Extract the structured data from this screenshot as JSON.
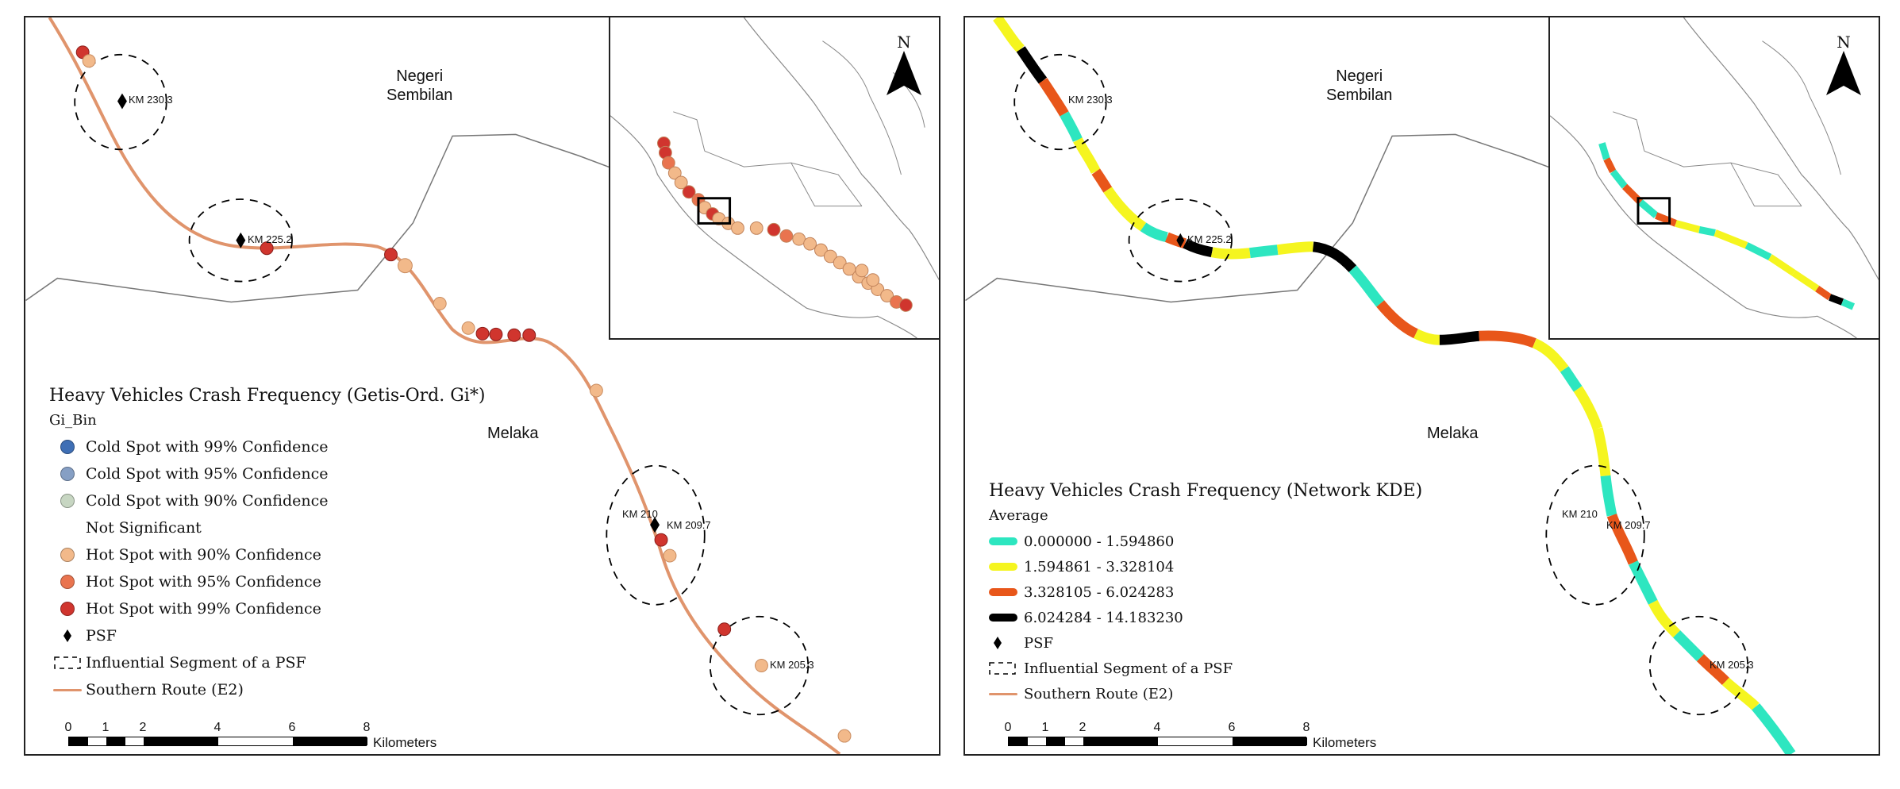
{
  "left_map": {
    "places": {
      "negeri": "Negeri\nSembilan",
      "melaka": "Melaka"
    },
    "km_labels": {
      "km230": "KM 230.3",
      "km225": "KM 225.2",
      "km210": "KM 210",
      "km209": "KM 209.7",
      "km205": "KM 205.3"
    },
    "legend": {
      "title": "Heavy Vehicles Crash Frequency (Getis-Ord. Gi*)",
      "field": "Gi_Bin",
      "items": [
        {
          "label": "Cold Spot with 99% Confidence",
          "color": "#3f6fb5"
        },
        {
          "label": "Cold Spot with 95% Confidence",
          "color": "#869fc4"
        },
        {
          "label": "Cold Spot with 90% Confidence",
          "color": "#c7d6c2"
        },
        {
          "label": "Not Significant",
          "color": "#ffffff"
        },
        {
          "label": "Hot Spot with 90% Confidence",
          "color": "#f2b98a"
        },
        {
          "label": "Hot Spot with 95% Confidence",
          "color": "#e9744f"
        },
        {
          "label": "Hot Spot with 99% Confidence",
          "color": "#d0352e"
        }
      ],
      "psf": "PSF",
      "influential": "Influential Segment of a PSF",
      "route": "Southern Route (E2)"
    },
    "scale": {
      "ticks": [
        "0",
        "1",
        "2",
        "4",
        "6",
        "8"
      ],
      "unit": "Kilometers"
    },
    "north": "N"
  },
  "right_map": {
    "places": {
      "negeri": "Negeri\nSembilan",
      "melaka": "Melaka"
    },
    "km_labels": {
      "km230": "KM 230.3",
      "km225": "KM 225.2",
      "km210": "KM 210",
      "km209": "KM 209.7",
      "km205": "KM 205.3"
    },
    "legend": {
      "title": "Heavy Vehicles Crash Frequency  (Network KDE)",
      "field": "Average",
      "items": [
        {
          "label": "0.000000 - 1.594860",
          "color": "#2de6c0"
        },
        {
          "label": "1.594861 - 3.328104",
          "color": "#f5f51f"
        },
        {
          "label": "3.328105 - 6.024283",
          "color": "#e8561a"
        },
        {
          "label": "6.024284 - 14.183230",
          "color": "#000000"
        }
      ],
      "psf": "PSF",
      "influential": "Influential Segment of a PSF",
      "route": "Southern Route (E2)"
    },
    "scale": {
      "ticks": [
        "0",
        "1",
        "2",
        "4",
        "6",
        "8"
      ],
      "unit": "Kilometers"
    },
    "north": "N"
  },
  "colors": {
    "route": "#e0946c",
    "boundary": "#777777",
    "hot90": "#f2b98a",
    "hot95": "#e9744f",
    "hot99": "#d0352e",
    "kde_low": "#2de6c0",
    "kde_mid": "#f5f51f",
    "kde_high": "#e8561a",
    "kde_top": "#000000"
  }
}
